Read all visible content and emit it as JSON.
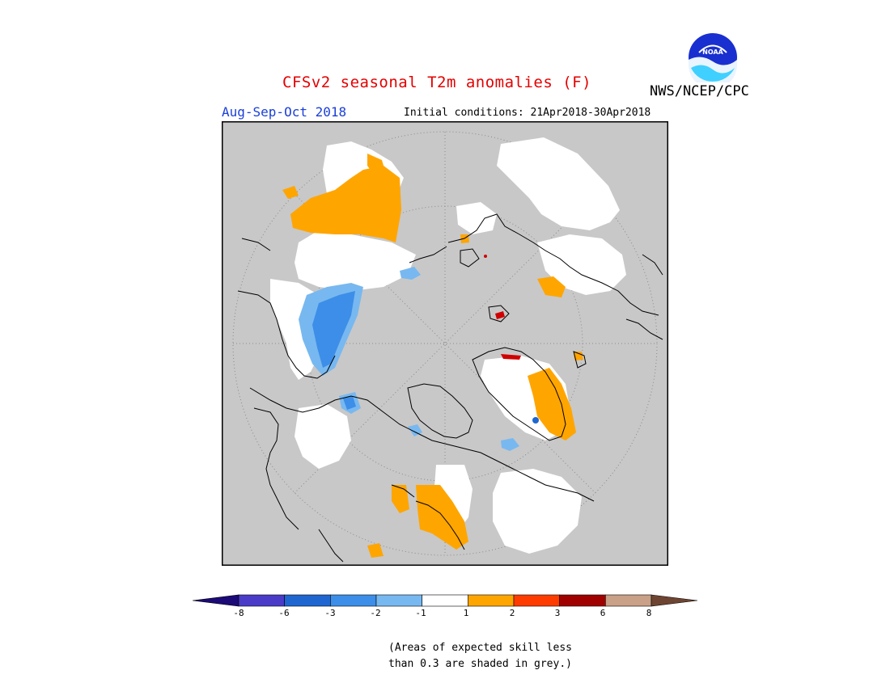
{
  "header": {
    "title": "CFSv2 seasonal T2m anomalies (F)",
    "season": "Aug-Sep-Oct 2018",
    "initial_conditions": "Initial conditions: 21Apr2018-30Apr2018",
    "organization": "NWS/NCEP/CPC",
    "logo_text": "NOAA"
  },
  "legend": {
    "labels": [
      "-8",
      "-6",
      "-3",
      "-2",
      "-1",
      "1",
      "2",
      "3",
      "6",
      "8"
    ],
    "colors": [
      "#1c0a78",
      "#4a3cc8",
      "#1f66d0",
      "#3c8ee8",
      "#78b8f0",
      "#ffffff",
      "#ffa500",
      "#ff3c00",
      "#a00000",
      "#c9a088",
      "#6e4532"
    ]
  },
  "note": {
    "line1": "(Areas of expected skill less",
    "line2": "than 0.3 are shaded in grey.)"
  },
  "colors": {
    "background": "#ffffff",
    "map_grey": "#c8c8c8",
    "title_red": "#e30000",
    "season_blue": "#1a3fd8"
  }
}
